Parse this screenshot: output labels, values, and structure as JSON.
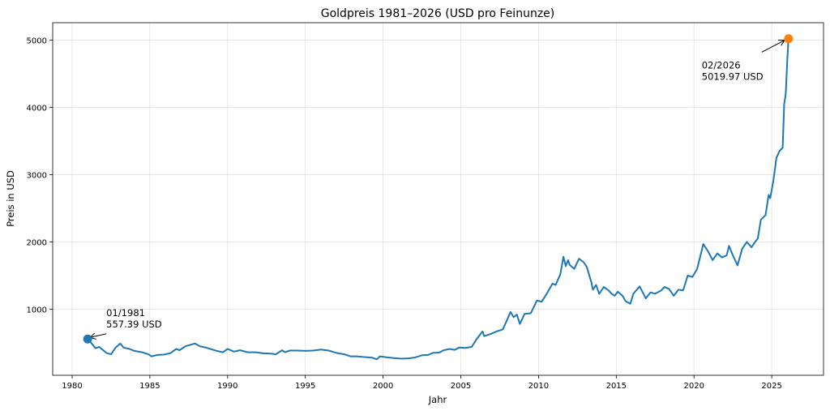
{
  "chart_data": {
    "type": "line",
    "title": "Goldpreis 1981–2026 (USD pro Feinunze)",
    "xlabel": "Jahr",
    "ylabel": "Preis in USD",
    "xlim": [
      1978.75,
      2028.33
    ],
    "ylim": [
      18,
      5258
    ],
    "grid": true,
    "xticks": [
      1980,
      1985,
      1990,
      1995,
      2000,
      2005,
      2010,
      2015,
      2020,
      2025
    ],
    "yticks": [
      1000,
      2000,
      3000,
      4000,
      5000
    ],
    "line_color": "#1f77b4",
    "end_marker_color": "#ff7f0e",
    "series": [
      {
        "name": "Goldpreis",
        "points": [
          [
            1981.0,
            557
          ],
          [
            1981.3,
            480
          ],
          [
            1981.5,
            420
          ],
          [
            1981.75,
            440
          ],
          [
            1982.2,
            350
          ],
          [
            1982.5,
            330
          ],
          [
            1982.8,
            430
          ],
          [
            1983.1,
            490
          ],
          [
            1983.3,
            430
          ],
          [
            1983.7,
            410
          ],
          [
            1984.0,
            380
          ],
          [
            1984.5,
            360
          ],
          [
            1984.9,
            330
          ],
          [
            1985.1,
            300
          ],
          [
            1985.5,
            320
          ],
          [
            1985.9,
            325
          ],
          [
            1986.3,
            345
          ],
          [
            1986.7,
            410
          ],
          [
            1986.9,
            390
          ],
          [
            1987.3,
            450
          ],
          [
            1987.9,
            490
          ],
          [
            1988.2,
            450
          ],
          [
            1988.6,
            430
          ],
          [
            1988.9,
            410
          ],
          [
            1989.3,
            380
          ],
          [
            1989.7,
            360
          ],
          [
            1990.0,
            410
          ],
          [
            1990.4,
            370
          ],
          [
            1990.8,
            390
          ],
          [
            1991.3,
            360
          ],
          [
            1991.8,
            360
          ],
          [
            1992.3,
            345
          ],
          [
            1992.8,
            340
          ],
          [
            1993.1,
            330
          ],
          [
            1993.5,
            390
          ],
          [
            1993.7,
            360
          ],
          [
            1994.0,
            385
          ],
          [
            1994.5,
            385
          ],
          [
            1995.0,
            380
          ],
          [
            1995.5,
            385
          ],
          [
            1996.0,
            400
          ],
          [
            1996.5,
            385
          ],
          [
            1997.0,
            350
          ],
          [
            1997.5,
            330
          ],
          [
            1997.9,
            300
          ],
          [
            1998.3,
            300
          ],
          [
            1998.7,
            290
          ],
          [
            1999.3,
            280
          ],
          [
            1999.6,
            255
          ],
          [
            1999.8,
            300
          ],
          [
            2000.2,
            285
          ],
          [
            2000.7,
            275
          ],
          [
            2001.2,
            265
          ],
          [
            2001.6,
            270
          ],
          [
            2002.0,
            280
          ],
          [
            2002.5,
            315
          ],
          [
            2002.9,
            320
          ],
          [
            2003.2,
            350
          ],
          [
            2003.6,
            355
          ],
          [
            2003.9,
            390
          ],
          [
            2004.3,
            410
          ],
          [
            2004.6,
            395
          ],
          [
            2004.9,
            430
          ],
          [
            2005.3,
            425
          ],
          [
            2005.7,
            440
          ],
          [
            2006.0,
            550
          ],
          [
            2006.4,
            670
          ],
          [
            2006.5,
            600
          ],
          [
            2006.9,
            630
          ],
          [
            2007.3,
            670
          ],
          [
            2007.7,
            700
          ],
          [
            2007.9,
            800
          ],
          [
            2008.2,
            960
          ],
          [
            2008.4,
            880
          ],
          [
            2008.6,
            920
          ],
          [
            2008.8,
            780
          ],
          [
            2009.1,
            930
          ],
          [
            2009.5,
            940
          ],
          [
            2009.9,
            1130
          ],
          [
            2010.2,
            1110
          ],
          [
            2010.5,
            1220
          ],
          [
            2010.9,
            1380
          ],
          [
            2011.1,
            1360
          ],
          [
            2011.4,
            1520
          ],
          [
            2011.6,
            1780
          ],
          [
            2011.75,
            1640
          ],
          [
            2011.9,
            1730
          ],
          [
            2012.0,
            1660
          ],
          [
            2012.3,
            1600
          ],
          [
            2012.6,
            1750
          ],
          [
            2012.9,
            1700
          ],
          [
            2013.1,
            1630
          ],
          [
            2013.4,
            1400
          ],
          [
            2013.5,
            1290
          ],
          [
            2013.7,
            1360
          ],
          [
            2013.9,
            1230
          ],
          [
            2014.2,
            1330
          ],
          [
            2014.5,
            1280
          ],
          [
            2014.7,
            1230
          ],
          [
            2014.9,
            1200
          ],
          [
            2015.1,
            1260
          ],
          [
            2015.4,
            1200
          ],
          [
            2015.6,
            1120
          ],
          [
            2015.9,
            1080
          ],
          [
            2016.1,
            1230
          ],
          [
            2016.5,
            1340
          ],
          [
            2016.9,
            1160
          ],
          [
            2017.2,
            1250
          ],
          [
            2017.5,
            1230
          ],
          [
            2017.9,
            1280
          ],
          [
            2018.1,
            1330
          ],
          [
            2018.4,
            1300
          ],
          [
            2018.7,
            1200
          ],
          [
            2019.0,
            1290
          ],
          [
            2019.3,
            1280
          ],
          [
            2019.6,
            1500
          ],
          [
            2019.9,
            1480
          ],
          [
            2020.2,
            1600
          ],
          [
            2020.6,
            1970
          ],
          [
            2020.9,
            1860
          ],
          [
            2021.2,
            1730
          ],
          [
            2021.5,
            1830
          ],
          [
            2021.8,
            1770
          ],
          [
            2022.1,
            1800
          ],
          [
            2022.25,
            1940
          ],
          [
            2022.5,
            1800
          ],
          [
            2022.8,
            1650
          ],
          [
            2023.1,
            1900
          ],
          [
            2023.4,
            2000
          ],
          [
            2023.7,
            1920
          ],
          [
            2023.9,
            1990
          ],
          [
            2024.1,
            2050
          ],
          [
            2024.3,
            2330
          ],
          [
            2024.6,
            2400
          ],
          [
            2024.8,
            2700
          ],
          [
            2024.9,
            2650
          ],
          [
            2025.1,
            2900
          ],
          [
            2025.3,
            3250
          ],
          [
            2025.5,
            3350
          ],
          [
            2025.7,
            3400
          ],
          [
            2025.8,
            4050
          ],
          [
            2025.9,
            4200
          ],
          [
            2026.0,
            4700
          ],
          [
            2026.08,
            5020
          ]
        ]
      }
    ],
    "annotations": [
      {
        "date": "01/1981",
        "value": "557.39 USD",
        "x": 1981.0,
        "y": 557.39,
        "text_x": 1982.2,
        "text_y": 900
      },
      {
        "date": "02/2026",
        "value": "5019.97 USD",
        "x": 2026.08,
        "y": 5019.97,
        "text_x": 2020.5,
        "text_y": 4580
      }
    ]
  }
}
